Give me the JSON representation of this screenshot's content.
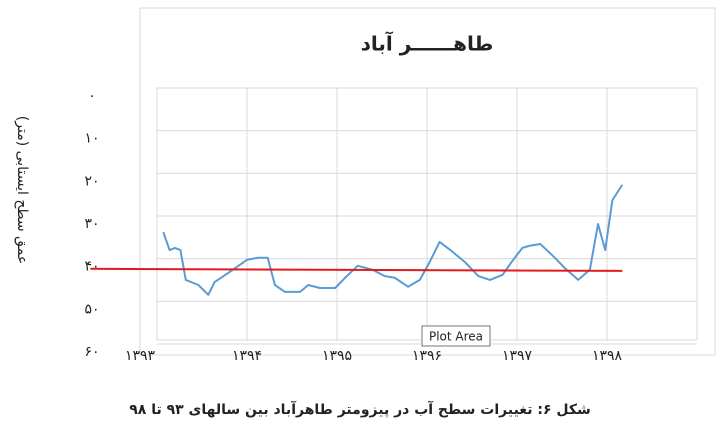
{
  "chart_data": {
    "type": "line",
    "title": "طاهــــــر آباد",
    "y_label": "عمق سطح ایستابی (متر)",
    "caption": "شکل ۶: تغییرات سطح آب در پیزومتر طاهرآباد بین سالهای ۹۳ تا ۹۸",
    "tooltip": "Plot Area",
    "y_inverted": true,
    "grid": true,
    "xlim": [
      1393,
      1399
    ],
    "xticks": [
      {
        "value": 1393,
        "label": "۱۳۹۳"
      },
      {
        "value": 1394,
        "label": "۱۳۹۴"
      },
      {
        "value": 1395,
        "label": "۱۳۹۵"
      },
      {
        "value": 1396,
        "label": "۱۳۹۶"
      },
      {
        "value": 1397,
        "label": "۱۳۹۷"
      },
      {
        "value": 1398,
        "label": "۱۳۹۸"
      }
    ],
    "ylim": [
      0,
      60
    ],
    "yticks": [
      {
        "value": 0,
        "label": "۰"
      },
      {
        "value": 10,
        "label": "۱۰"
      },
      {
        "value": 20,
        "label": "۲۰"
      },
      {
        "value": 30,
        "label": "۳۰"
      },
      {
        "value": 40,
        "label": "۴۰"
      },
      {
        "value": 50,
        "label": "۵۰"
      },
      {
        "value": 60,
        "label": "۶۰"
      }
    ],
    "series": [
      {
        "color": "#5b9bd5",
        "x": [
          1393.07,
          1393.14,
          1393.2,
          1393.26,
          1393.32,
          1393.46,
          1393.57,
          1393.64,
          1393.81,
          1394.0,
          1394.12,
          1394.23,
          1394.31,
          1394.42,
          1394.59,
          1394.68,
          1394.81,
          1394.98,
          1395.09,
          1395.23,
          1395.39,
          1395.53,
          1395.64,
          1395.79,
          1395.92,
          1396.03,
          1396.14,
          1396.26,
          1396.42,
          1396.57,
          1396.7,
          1396.84,
          1396.94,
          1397.06,
          1397.14,
          1397.26,
          1397.42,
          1397.53,
          1397.68,
          1397.81,
          1397.9,
          1397.98,
          1398.06,
          1398.17
        ],
        "values": [
          31.9,
          36.1,
          35.6,
          36.1,
          43.1,
          44.3,
          46.6,
          43.6,
          41.2,
          38.4,
          37.9,
          37.9,
          44.3,
          45.9,
          45.9,
          44.3,
          45.0,
          45.0,
          42.6,
          39.8,
          40.7,
          42.2,
          42.6,
          44.7,
          43.1,
          38.9,
          34.2,
          36.1,
          38.9,
          42.2,
          43.1,
          41.9,
          38.9,
          35.6,
          35.1,
          34.7,
          37.9,
          40.3,
          43.1,
          40.7,
          30.0,
          36.1,
          24.4,
          20.8
        ]
      },
      {
        "color": "#e31a1c",
        "x": [
          1392.26,
          1398.17
        ],
        "values": [
          40.5,
          41.0
        ]
      }
    ]
  }
}
